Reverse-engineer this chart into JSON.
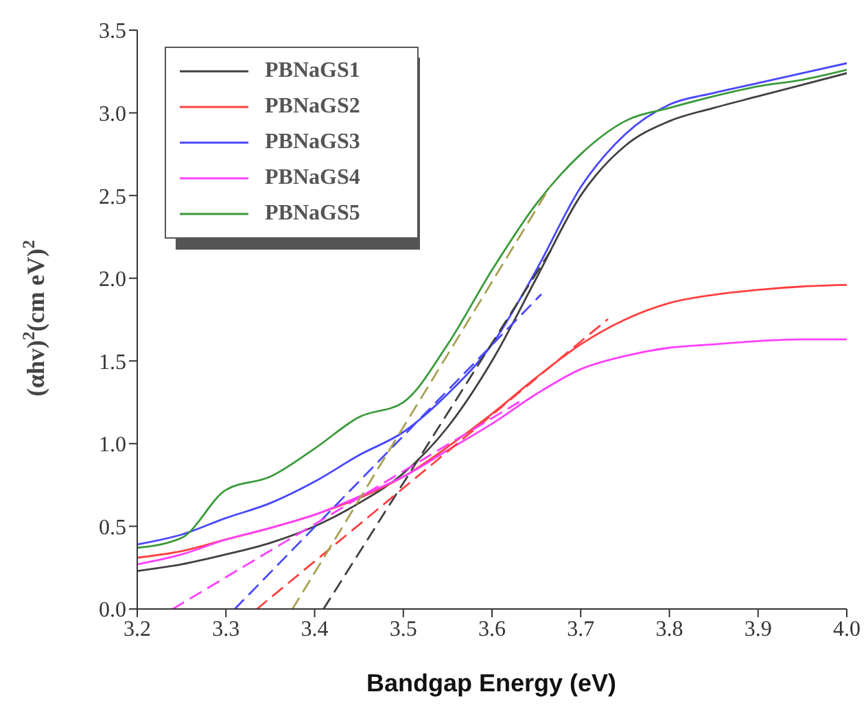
{
  "chart_data": {
    "type": "line",
    "xlabel": "Bandgap Energy (eV)",
    "ylabel": "(αhv)$^{2}$(cm eV)$^{2}$",
    "x": [
      3.2,
      3.25,
      3.3,
      3.35,
      3.4,
      3.45,
      3.5,
      3.55,
      3.6,
      3.65,
      3.7,
      3.75,
      3.8,
      3.85,
      3.9,
      3.95,
      4.0
    ],
    "xlim": [
      3.2,
      4.0
    ],
    "xticks": [
      3.2,
      3.3,
      3.4,
      3.5,
      3.6,
      3.7,
      3.8,
      3.9,
      {
        "value": 4.0,
        "label": "4.0"
      }
    ],
    "ylim": [
      0,
      3.5
    ],
    "yticks": [
      {
        "value": 0,
        "label": "0.0"
      },
      0.5,
      {
        "value": 1,
        "label": "1.0"
      },
      1.5,
      {
        "value": 2,
        "label": "2.0"
      },
      2.5,
      {
        "value": 3,
        "label": "3.0"
      },
      3.5
    ],
    "legend": "top left",
    "grid": false,
    "marker": "none",
    "line_style": "solid",
    "series": [
      {
        "name": "PBNaGS1",
        "color": "#404040",
        "values": [
          0.23,
          0.27,
          0.33,
          0.4,
          0.5,
          0.64,
          0.82,
          1.1,
          1.5,
          2.0,
          2.5,
          2.8,
          2.95,
          3.03,
          3.1,
          3.17,
          3.24
        ]
      },
      {
        "name": "PBNaGS2",
        "color": "#ff4040",
        "values": [
          0.31,
          0.35,
          0.42,
          0.49,
          0.57,
          0.67,
          0.8,
          0.98,
          1.18,
          1.4,
          1.6,
          1.75,
          1.85,
          1.9,
          1.93,
          1.95,
          1.96
        ]
      },
      {
        "name": "PBNaGS3",
        "color": "#4848ff",
        "values": [
          0.39,
          0.45,
          0.55,
          0.64,
          0.77,
          0.93,
          1.07,
          1.3,
          1.6,
          2.05,
          2.55,
          2.87,
          3.05,
          3.12,
          3.18,
          3.24,
          3.3
        ]
      },
      {
        "name": "PBNaGS4",
        "color": "#ff40ff",
        "values": [
          0.27,
          0.33,
          0.42,
          0.49,
          0.57,
          0.68,
          0.8,
          0.96,
          1.12,
          1.3,
          1.45,
          1.53,
          1.58,
          1.6,
          1.62,
          1.63,
          1.63
        ]
      },
      {
        "name": "PBNaGS5",
        "color": "#3a9a3a",
        "values": [
          0.37,
          0.43,
          0.72,
          0.8,
          0.97,
          1.16,
          1.25,
          1.6,
          2.05,
          2.45,
          2.75,
          2.95,
          3.03,
          3.1,
          3.16,
          3.2,
          3.26
        ]
      },
      {
        "color": "#404040",
        "line_style": "dashed",
        "x": [
          3.41,
          3.67
        ],
        "values": [
          0,
          2.2
        ]
      },
      {
        "color": "#ff4040",
        "line_style": "dashed",
        "x": [
          3.335,
          3.73
        ],
        "values": [
          0,
          1.75
        ]
      },
      {
        "color": "#4848ff",
        "line_style": "dashed",
        "x": [
          3.31,
          3.655
        ],
        "values": [
          0,
          1.9
        ]
      },
      {
        "color": "#ff40ff",
        "line_style": "dashed",
        "x": [
          3.24,
          3.63
        ],
        "values": [
          0,
          1.25
        ]
      },
      {
        "color": "#a8a050",
        "line_style": "dashed",
        "x": [
          3.375,
          3.665
        ],
        "values": [
          0,
          2.55
        ]
      }
    ]
  }
}
